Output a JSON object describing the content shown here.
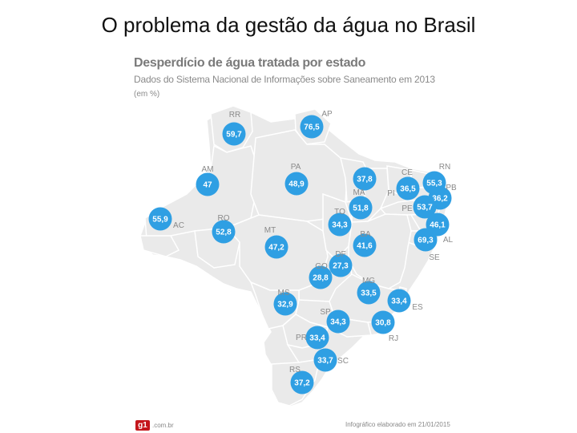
{
  "slide": {
    "title": "O problema da gestão da água no Brasil"
  },
  "infographic": {
    "title": "Desperdício de água tratada por estado",
    "subtitle": "Dados do Sistema Nacional de Informações sobre Saneamento em 2013",
    "unit": "(em %)",
    "footer_logo": "g1",
    "footer_logo_domain": ".com.br",
    "footer_credit": "Infográfico elaborado em 21/01/2015",
    "colors": {
      "bubble": "#2f9fe3",
      "land": "#eaeaea",
      "border": "#ffffff",
      "label": "#8a8a8a"
    }
  },
  "states": [
    {
      "code": "RR",
      "value": "59,7"
    },
    {
      "code": "AP",
      "value": "76,5"
    },
    {
      "code": "AM",
      "value": "47"
    },
    {
      "code": "PA",
      "value": "48,9"
    },
    {
      "code": "AC",
      "value": "55,9"
    },
    {
      "code": "RO",
      "value": "52,8"
    },
    {
      "code": "MT",
      "value": "47,2"
    },
    {
      "code": "TO",
      "value": "34,3"
    },
    {
      "code": "MA",
      "value": "37,8"
    },
    {
      "code": "PI",
      "value": "51,8"
    },
    {
      "code": "CE",
      "value": "36,5"
    },
    {
      "code": "RN",
      "value": "55,3"
    },
    {
      "code": "PB",
      "value": "36,2"
    },
    {
      "code": "PE",
      "value": "53,7"
    },
    {
      "code": "AL",
      "value": "46,1"
    },
    {
      "code": "SE",
      "value": "69,3"
    },
    {
      "code": "BA",
      "value": "41,6"
    },
    {
      "code": "DF",
      "value": "27,3"
    },
    {
      "code": "GO",
      "value": "28,8"
    },
    {
      "code": "MG",
      "value": "33,5"
    },
    {
      "code": "ES",
      "value": "33,4"
    },
    {
      "code": "RJ",
      "value": "30,8"
    },
    {
      "code": "SP",
      "value": "34,3"
    },
    {
      "code": "MS",
      "value": "32,9"
    },
    {
      "code": "PR",
      "value": "33,4"
    },
    {
      "code": "SC",
      "value": "33,7"
    },
    {
      "code": "RS",
      "value": "37,2"
    }
  ]
}
